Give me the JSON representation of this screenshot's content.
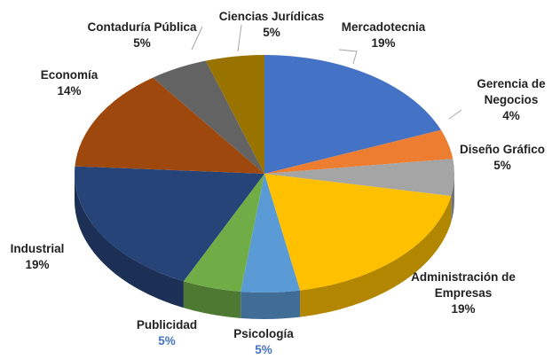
{
  "chart_data": {
    "type": "pie3d",
    "categories": [
      "Mercadotecnia",
      "Gerencia de Negocios",
      "Diseño Gráfico",
      "Administración de Empresas",
      "Psicología",
      "Publicidad",
      "Industrial",
      "Economía",
      "Contaduría Pública",
      "Ciencias Jurídicas"
    ],
    "values": [
      19,
      4,
      5,
      19,
      5,
      5,
      19,
      14,
      5,
      5
    ],
    "value_labels": [
      "19%",
      "4%",
      "5%",
      "19%",
      "5%",
      "5%",
      "19%",
      "14%",
      "5%",
      "5%"
    ],
    "colors": [
      "#4472c4",
      "#ed7d31",
      "#a5a5a5",
      "#ffc000",
      "#5b9bd5",
      "#70ad47",
      "#264478",
      "#9e480e",
      "#636363",
      "#997300"
    ]
  }
}
